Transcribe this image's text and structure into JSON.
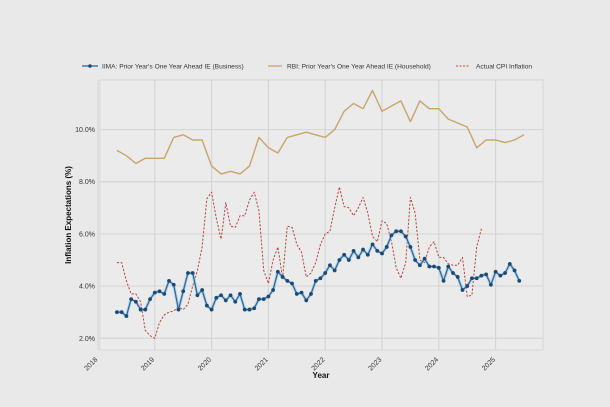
{
  "chart_data": {
    "type": "line",
    "title": "",
    "xlabel": "Year",
    "ylabel": "Inflation Expectations (%)",
    "xlim": [
      "2017-12",
      "2025-11"
    ],
    "ylim": [
      1.55,
      11.9
    ],
    "grid": true,
    "legend_position": "top",
    "x_ticks": [
      "2018",
      "2019",
      "2020",
      "2021",
      "2022",
      "2023",
      "2024",
      "2025"
    ],
    "y_ticks": [
      2,
      4,
      6,
      8,
      10
    ],
    "y_tick_labels": [
      "2.0%",
      "4.0%",
      "6.0%",
      "8.0%",
      "10.0%"
    ],
    "series": [
      {
        "name": "IIMA: Prior Year's One Year Ahead IE (Business)",
        "color": "#2b6a9b",
        "marker_color": "#1d4a72",
        "style": "solid-with-markers",
        "start": "2018-05",
        "frequency": "monthly",
        "values": [
          3.0,
          3.0,
          2.85,
          3.5,
          3.4,
          3.1,
          3.1,
          3.5,
          3.75,
          3.8,
          3.7,
          4.2,
          4.05,
          3.1,
          3.8,
          4.5,
          4.5,
          3.65,
          3.85,
          3.25,
          3.1,
          3.55,
          3.65,
          3.45,
          3.65,
          3.4,
          3.7,
          3.1,
          3.1,
          3.15,
          3.5,
          3.5,
          3.6,
          3.85,
          4.55,
          4.35,
          4.2,
          4.1,
          3.7,
          3.75,
          3.45,
          3.7,
          4.2,
          4.3,
          4.5,
          4.8,
          4.6,
          5.0,
          5.2,
          5.0,
          5.35,
          5.1,
          5.4,
          5.2,
          5.6,
          5.35,
          5.25,
          5.5,
          5.95,
          6.1,
          6.1,
          5.9,
          5.5,
          5.0,
          4.8,
          5.05,
          4.75,
          4.75,
          4.7,
          4.2,
          4.75,
          4.5,
          4.35,
          3.85,
          4.0,
          4.3,
          4.3,
          4.4,
          4.45,
          4.05,
          4.55,
          4.4,
          4.5,
          4.85,
          4.6,
          4.2
        ]
      },
      {
        "name": "RBI: Prior Year's One Year Ahead IE (Household)",
        "color": "#c9a46c",
        "style": "solid",
        "x": [
          "2018-05",
          "2018-07",
          "2018-09",
          "2018-11",
          "2019-01",
          "2019-03",
          "2019-05",
          "2019-07",
          "2019-09",
          "2019-11",
          "2020-01",
          "2020-03",
          "2020-05",
          "2020-07",
          "2020-09",
          "2020-11",
          "2021-01",
          "2021-03",
          "2021-05",
          "2021-09",
          "2022-01",
          "2022-03",
          "2022-05",
          "2022-07",
          "2022-09",
          "2022-11",
          "2023-01",
          "2023-05",
          "2023-07",
          "2023-09",
          "2023-11",
          "2024-01",
          "2024-03",
          "2024-07",
          "2024-09",
          "2024-11",
          "2025-01",
          "2025-03",
          "2025-05",
          "2025-07"
        ],
        "values": [
          9.2,
          9.0,
          8.7,
          8.9,
          8.9,
          8.9,
          9.7,
          9.8,
          9.6,
          9.6,
          8.6,
          8.3,
          8.4,
          8.3,
          8.6,
          9.7,
          9.3,
          9.1,
          9.7,
          9.9,
          9.7,
          10.0,
          10.7,
          11.0,
          10.8,
          11.5,
          10.7,
          11.1,
          10.3,
          11.1,
          10.8,
          10.8,
          10.4,
          10.1,
          9.3,
          9.6,
          9.6,
          9.5,
          9.6,
          9.8
        ]
      },
      {
        "name": "Actual CPI Inflation",
        "color": "#b8453d",
        "style": "dashed",
        "start": "2018-05",
        "frequency": "monthly",
        "values": [
          4.9,
          4.9,
          4.2,
          3.7,
          3.7,
          3.4,
          2.3,
          2.1,
          2.0,
          2.6,
          2.9,
          3.0,
          3.05,
          3.2,
          3.1,
          3.3,
          4.0,
          4.6,
          5.5,
          7.35,
          7.6,
          6.6,
          5.8,
          7.2,
          6.3,
          6.25,
          6.7,
          6.7,
          7.3,
          7.6,
          6.9,
          4.6,
          4.1,
          5.0,
          5.5,
          4.3,
          6.3,
          6.25,
          5.6,
          5.3,
          4.35,
          4.5,
          4.9,
          5.6,
          6.0,
          6.1,
          7.0,
          7.8,
          7.05,
          7.0,
          6.7,
          7.0,
          7.4,
          6.8,
          5.9,
          5.7,
          6.5,
          6.4,
          5.7,
          4.7,
          4.3,
          4.9,
          7.4,
          6.8,
          5.0,
          4.9,
          5.5,
          5.7,
          5.1,
          5.1,
          4.85,
          4.8,
          4.8,
          5.1,
          3.6,
          3.65,
          5.5,
          6.2
        ]
      }
    ]
  }
}
